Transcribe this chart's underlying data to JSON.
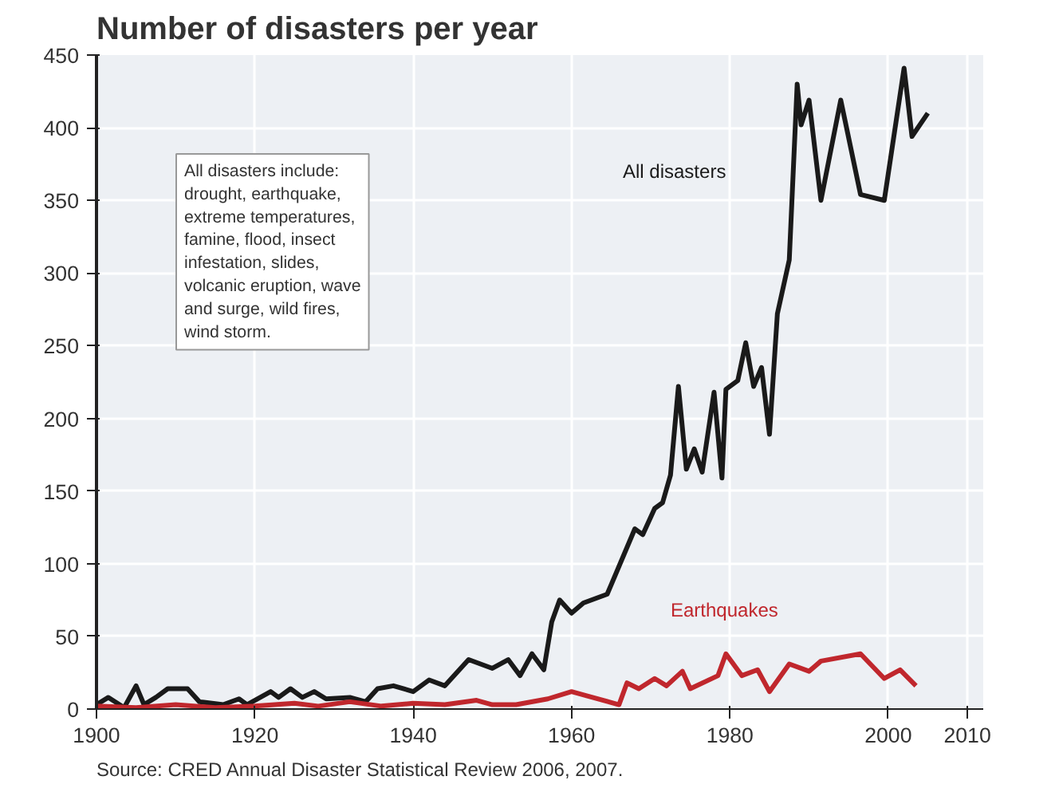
{
  "chart_data": {
    "type": "line",
    "title": "Number of disasters per year",
    "x": [
      1900,
      1901.5,
      1903.5,
      1905,
      1906,
      1907.5,
      1909,
      1911.5,
      1913,
      1916,
      1918,
      1919,
      1922,
      1923,
      1924.5,
      1926,
      1927.5,
      1929,
      1932,
      1934,
      1935.5,
      1937.5,
      1940,
      1942,
      1944,
      1947,
      1950,
      1952,
      1953.5,
      1955,
      1956.5,
      1957.5,
      1958.5,
      1960,
      1961.5,
      1964.5,
      1968,
      1969,
      1970.5,
      1971.5,
      1972.5,
      1973.5,
      1974.5,
      1975.5,
      1976.5,
      1978,
      1979,
      1979.5,
      1981,
      1982,
      1983,
      1984,
      1985,
      1986,
      1987.5,
      1988.5,
      1989,
      1990,
      1991.5,
      1994,
      1996.5,
      1999.5,
      2002,
      2003,
      2005
    ],
    "series": [
      {
        "name": "All disasters",
        "color": "#1a1a1a",
        "values": [
          3,
          8,
          1,
          16,
          3,
          8,
          14,
          14,
          5,
          3,
          7,
          3,
          12,
          8,
          14,
          8,
          12,
          7,
          8,
          5,
          14,
          16,
          12,
          20,
          16,
          34,
          28,
          34,
          23,
          38,
          27,
          60,
          75,
          66,
          73,
          79,
          124,
          120,
          138,
          142,
          161,
          222,
          165,
          179,
          163,
          218,
          159,
          220,
          226,
          252,
          222,
          235,
          189,
          272,
          309,
          430,
          402,
          419,
          350,
          419,
          354,
          350,
          441,
          394,
          410
        ]
      },
      {
        "name": "Earthquakes",
        "color": "#c0272d",
        "x": [
          1900,
          1905,
          1910,
          1915,
          1920,
          1925,
          1928,
          1932,
          1936,
          1940,
          1944,
          1948,
          1950,
          1953,
          1957,
          1960,
          1962,
          1966,
          1967,
          1968.5,
          1970.5,
          1972,
          1974,
          1975,
          1978.5,
          1979.5,
          1981.5,
          1983.5,
          1985,
          1987.5,
          1990,
          1991.5,
          1996.5,
          1999.5,
          2001.5,
          2003.5
        ],
        "values": [
          2,
          1,
          3,
          1,
          2,
          4,
          2,
          5,
          2,
          4,
          3,
          6,
          3,
          3,
          7,
          12,
          9,
          3,
          18,
          14,
          21,
          16,
          26,
          14,
          23,
          38,
          23,
          27,
          12,
          31,
          26,
          33,
          38,
          21,
          27,
          16
        ]
      }
    ],
    "xlim": [
      1900,
      2012
    ],
    "xticks": [
      1900,
      1920,
      1940,
      1960,
      1980,
      2000,
      2010
    ],
    "ylim": [
      0,
      450
    ],
    "yticks": [
      0,
      50,
      100,
      150,
      200,
      250,
      300,
      350,
      400,
      450
    ],
    "grid": true,
    "annotations": [
      "All disasters include:\ndrought, earthquake,\nextreme temperatures,\nfamine, flood, insect\ninfestation, slides,\nvolcanic eruption, wave\nand surge, wild fires,\nwind storm.",
      "Source: CRED Annual Disaster Statistical Review 2006, 2007."
    ]
  }
}
